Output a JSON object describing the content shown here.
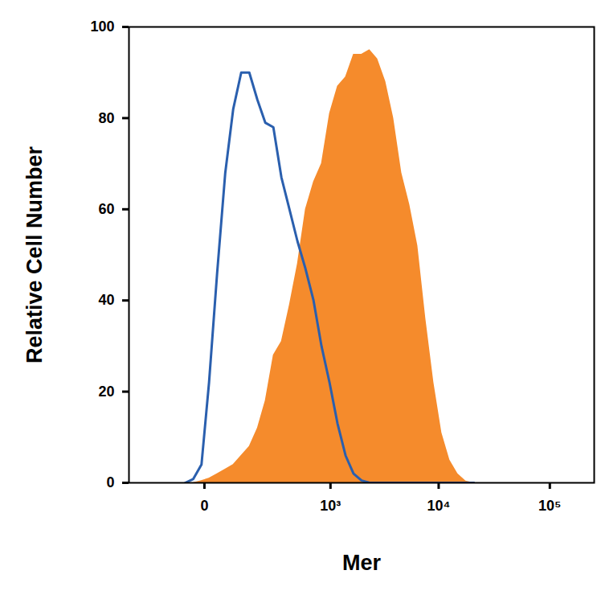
{
  "chart_data": {
    "type": "histogram",
    "x_label": "Mer",
    "y_label": "Relative Cell Number",
    "log": "x",
    "xlim": [
      -300,
      250000
    ],
    "xticks": [
      0,
      {
        "value": 1000,
        "label": "10³"
      },
      {
        "value": 10000,
        "label": "10⁴"
      },
      {
        "value": 100000,
        "label": "10⁵"
      }
    ],
    "ylim": [
      0,
      100
    ],
    "yticks": [
      0,
      20,
      40,
      60,
      80,
      100
    ],
    "x": [
      -39,
      -21,
      -5,
      8,
      24,
      43,
      65,
      91,
      122,
      159,
      201,
      252,
      312,
      383,
      466,
      564,
      681,
      817,
      979,
      1169,
      1394,
      1659,
      1973,
      2344,
      2776,
      3296,
      3896,
      4616,
      5464,
      6464,
      7640,
      9032,
      10664,
      12608,
      14896,
      17584,
      20768
    ],
    "series": [
      {
        "type": "area",
        "color": "#f58b2c",
        "values": [
          0,
          0,
          0.5,
          1,
          2,
          3,
          4,
          6,
          8,
          12,
          18,
          28,
          31,
          39,
          48,
          60,
          66,
          70,
          81,
          87,
          89,
          94,
          94,
          95,
          93,
          88,
          80,
          68,
          61,
          52,
          36,
          22,
          11,
          5,
          2,
          0.4,
          0
        ]
      },
      {
        "type": "line",
        "color": "#2a5fae",
        "values": [
          0,
          0.8,
          4,
          22,
          46,
          68,
          82,
          90,
          90,
          84,
          79,
          78,
          67,
          60,
          53,
          47,
          40,
          30,
          22,
          13,
          6,
          2,
          0.5,
          0,
          0,
          0,
          0,
          0,
          0,
          0,
          0,
          0,
          0,
          0,
          0,
          0,
          0
        ]
      }
    ]
  }
}
